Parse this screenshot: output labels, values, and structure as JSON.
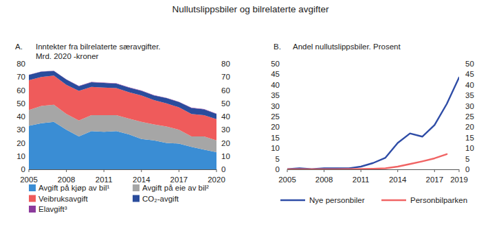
{
  "title": "Nullutslippsbiler og bilrelaterte avgifter",
  "chart_data": [
    {
      "type": "area",
      "stacked": true,
      "grid": false,
      "legend": "bottom",
      "title": "A.",
      "subtitle": [
        "Inntekter fra bilrelaterte særavgifter.",
        "Mrd. 2020 -kroner"
      ],
      "x": [
        2005,
        2006,
        2007,
        2008,
        2009,
        2010,
        2011,
        2012,
        2013,
        2014,
        2015,
        2016,
        2017,
        2018,
        2019,
        2020
      ],
      "xlim": [
        2005,
        2020
      ],
      "xticks": [
        2005,
        2008,
        2011,
        2014,
        2017,
        2020
      ],
      "ylim": [
        0,
        80
      ],
      "yticks": [
        0,
        10,
        20,
        30,
        40,
        50,
        60,
        70,
        80
      ],
      "y2lim": [
        0,
        80
      ],
      "y2ticks": [
        0,
        10,
        20,
        30,
        40,
        50,
        60,
        70,
        80
      ],
      "series": [
        {
          "name": "Avgift på kjøp av bil¹",
          "color": "#3a8dd4",
          "values": [
            33,
            35,
            36,
            30,
            25,
            29,
            28.5,
            29,
            26.5,
            23,
            22,
            20,
            19.5,
            17,
            15,
            13
          ]
        },
        {
          "name": "Avgift på eie av bil²",
          "color": "#a6a6a6",
          "values": [
            12,
            13,
            13,
            12,
            12,
            12,
            12.5,
            12,
            12,
            13,
            12,
            12.5,
            10.5,
            8,
            10,
            9
          ]
        },
        {
          "name": "Veibruksavgift",
          "color": "#ef5b5b",
          "values": [
            22.5,
            22,
            22,
            22,
            22.5,
            21.5,
            21,
            20.5,
            20,
            20,
            18.5,
            17.5,
            17,
            17,
            16,
            16
          ]
        },
        {
          "name": "CO₂-avgift",
          "color": "#2a4c9c",
          "values": [
            4,
            4,
            3.5,
            4,
            3.5,
            3.5,
            3.5,
            3.5,
            3.5,
            3.5,
            3.5,
            4,
            4,
            4.5,
            4.5,
            4
          ]
        },
        {
          "name": "Elavgift³",
          "color": "#8c3a9c",
          "values": [
            0.2,
            0.2,
            0.2,
            0.2,
            0.2,
            0.2,
            0.2,
            0.2,
            0.2,
            0.2,
            0.2,
            0.2,
            0.2,
            0.2,
            0.2,
            0.2
          ]
        }
      ]
    },
    {
      "type": "line",
      "grid": false,
      "legend": "bottom",
      "title": "B.",
      "subtitle": [
        "Andel nullutslippsbiler. Prosent"
      ],
      "x": [
        2005,
        2006,
        2007,
        2008,
        2009,
        2010,
        2011,
        2012,
        2013,
        2014,
        2015,
        2016,
        2017,
        2018,
        2019
      ],
      "xlim": [
        2005,
        2019
      ],
      "xticks": [
        2005,
        2008,
        2011,
        2014,
        2017,
        2019
      ],
      "ylim": [
        0,
        50
      ],
      "yticks": [
        0,
        5,
        10,
        15,
        20,
        25,
        30,
        35,
        40,
        45,
        50
      ],
      "y2lim": [
        0,
        50
      ],
      "y2ticks": [
        0,
        5,
        10,
        15,
        20,
        25,
        30,
        35,
        40,
        45,
        50
      ],
      "series": [
        {
          "name": "Nye personbiler",
          "color": "#2e4ca6",
          "values": [
            0.1,
            0.5,
            0.1,
            0.5,
            0.5,
            0.5,
            1.3,
            3,
            5.5,
            12.5,
            17,
            15.5,
            21,
            31,
            43.5
          ]
        },
        {
          "name": "Personbilparken",
          "color": "#f06464",
          "values": [
            0,
            0,
            0,
            0,
            0,
            0.1,
            0.2,
            0.3,
            0.5,
            1.3,
            2.5,
            3.8,
            5.2,
            7.2,
            null
          ]
        }
      ]
    }
  ]
}
